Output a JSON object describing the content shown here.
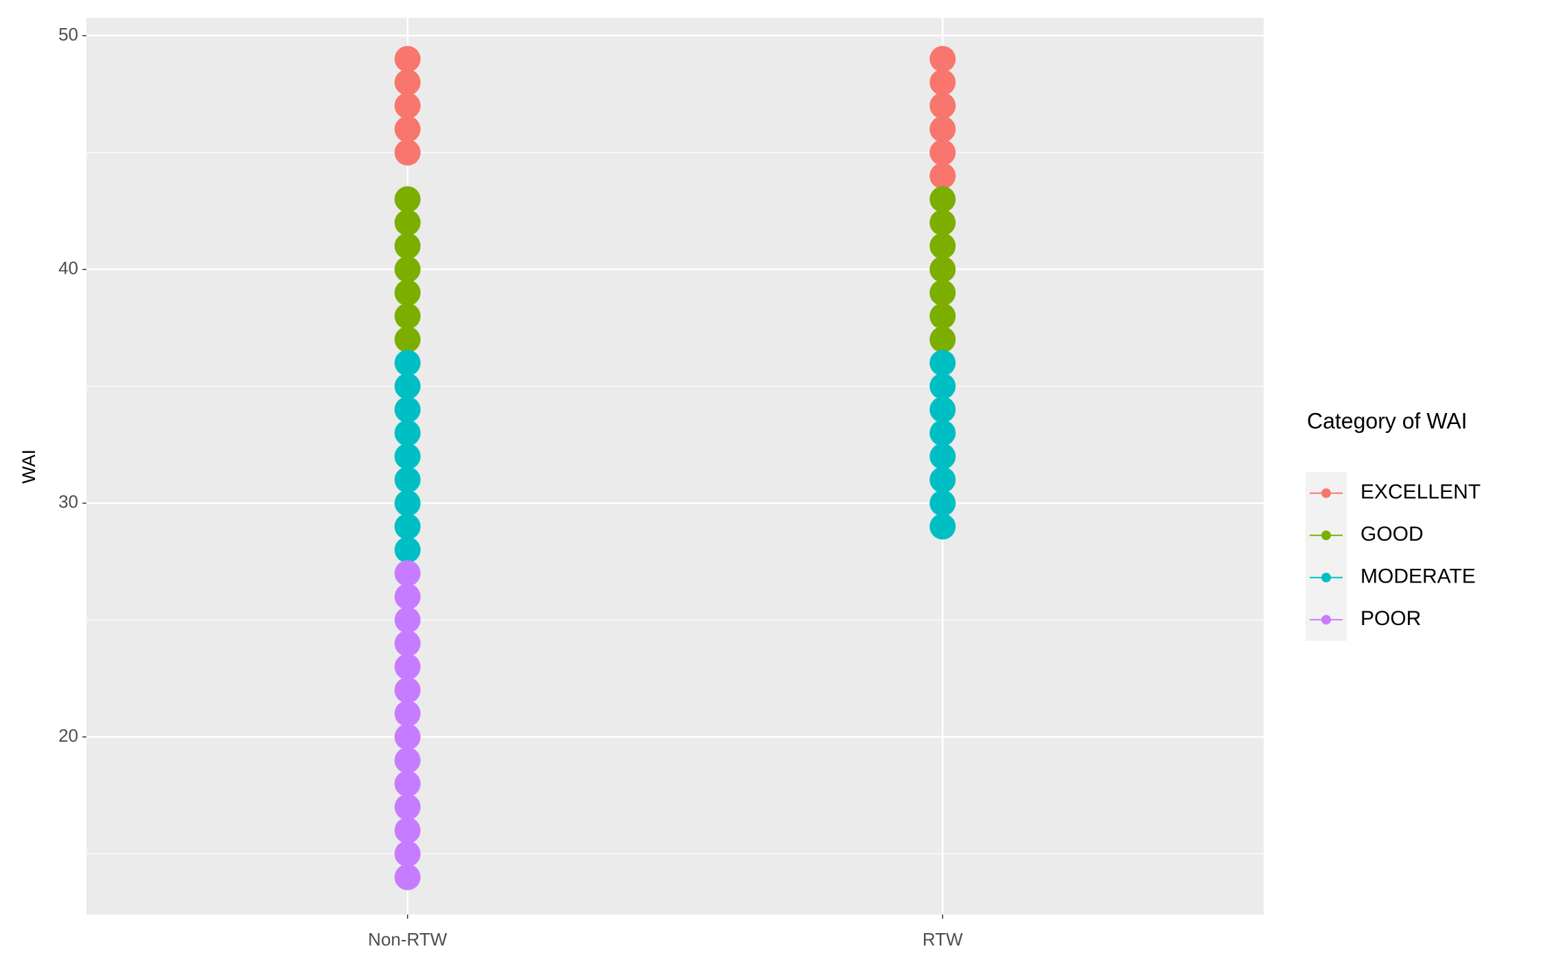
{
  "chart_data": {
    "type": "scatter",
    "y_label": "WAI",
    "categories": [
      "Non-RTW",
      "RTW"
    ],
    "legend_title": "Category of WAI",
    "legend_position": "right",
    "ylim": [
      12.4,
      50.76
    ],
    "yticks": [
      20,
      30,
      40,
      50
    ],
    "grid": true,
    "minor_grid": true,
    "series": [
      {
        "name": "EXCELLENT",
        "color": "#F8766D",
        "x": [
          "Non-RTW",
          "Non-RTW",
          "Non-RTW",
          "Non-RTW",
          "Non-RTW",
          "RTW",
          "RTW",
          "RTW",
          "RTW",
          "RTW",
          "RTW"
        ],
        "values": [
          45,
          46,
          47,
          48,
          49,
          44,
          45,
          46,
          47,
          48,
          49
        ]
      },
      {
        "name": "GOOD",
        "color": "#7CAE00",
        "x": [
          "Non-RTW",
          "Non-RTW",
          "Non-RTW",
          "Non-RTW",
          "Non-RTW",
          "Non-RTW",
          "Non-RTW",
          "RTW",
          "RTW",
          "RTW",
          "RTW",
          "RTW",
          "RTW",
          "RTW"
        ],
        "values": [
          37,
          38,
          39,
          40,
          41,
          42,
          43,
          37,
          38,
          39,
          40,
          41,
          42,
          43
        ]
      },
      {
        "name": "MODERATE",
        "color": "#00BFC4",
        "x": [
          "Non-RTW",
          "Non-RTW",
          "Non-RTW",
          "Non-RTW",
          "Non-RTW",
          "Non-RTW",
          "Non-RTW",
          "Non-RTW",
          "Non-RTW",
          "RTW",
          "RTW",
          "RTW",
          "RTW",
          "RTW",
          "RTW",
          "RTW",
          "RTW"
        ],
        "values": [
          28,
          29,
          30,
          31,
          32,
          33,
          34,
          35,
          36,
          29,
          30,
          31,
          32,
          33,
          34,
          35,
          36
        ]
      },
      {
        "name": "POOR",
        "color": "#C77CFF",
        "x": [
          "Non-RTW",
          "Non-RTW",
          "Non-RTW",
          "Non-RTW",
          "Non-RTW",
          "Non-RTW",
          "Non-RTW",
          "Non-RTW",
          "Non-RTW",
          "Non-RTW",
          "Non-RTW",
          "Non-RTW",
          "Non-RTW",
          "Non-RTW"
        ],
        "values": [
          14,
          15,
          16,
          17,
          18,
          19,
          20,
          21,
          22,
          23,
          24,
          25,
          26,
          27
        ]
      }
    ]
  }
}
